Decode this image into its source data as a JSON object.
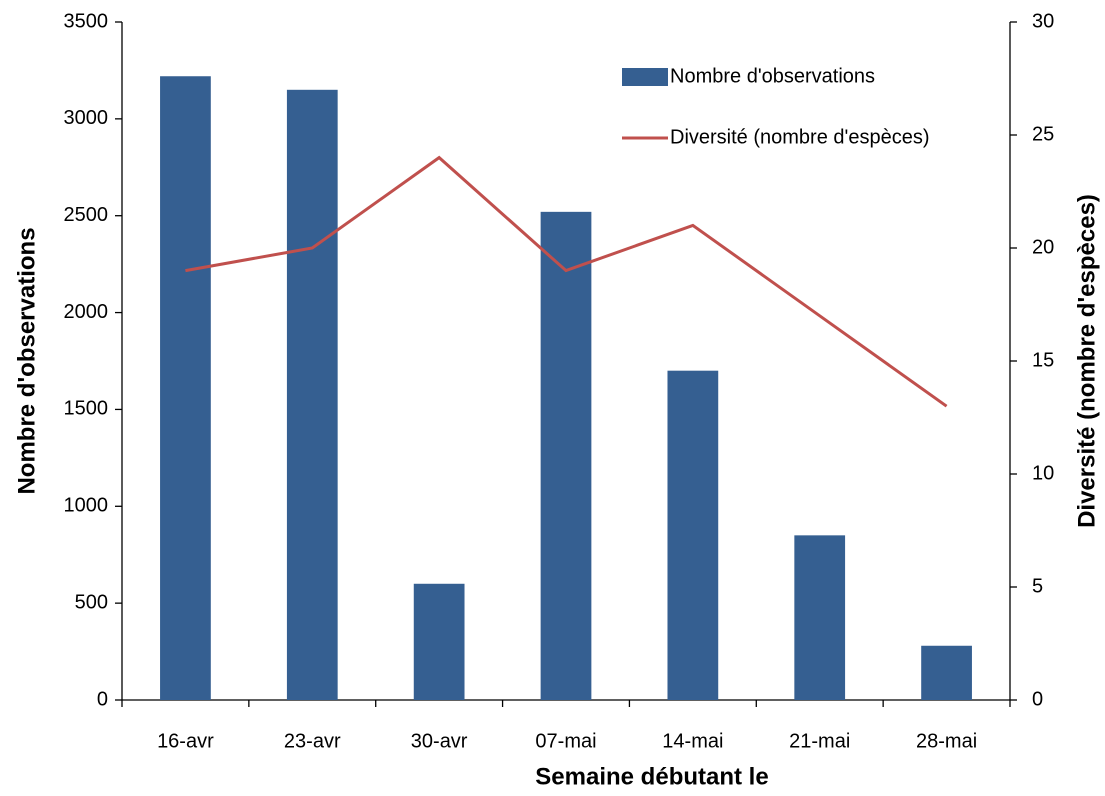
{
  "chart_data": {
    "type": "bar",
    "x_label": "Semaine débutant le",
    "y_label": "Nombre d'observations",
    "y2_label": "Diversité (nombre d'espèces)",
    "categories": [
      "16-avr",
      "23-avr",
      "30-avr",
      "07-mai",
      "14-mai",
      "21-mai",
      "28-mai"
    ],
    "series": [
      {
        "name": "Nombre d'observations",
        "type": "bar",
        "color": "#355f91",
        "values": [
          3220,
          3150,
          600,
          2520,
          1700,
          850,
          280
        ]
      },
      {
        "name": "Diversité (nombre d'espèces)",
        "type": "line",
        "axis": "y2",
        "color": "#c0504d",
        "values": [
          19,
          20,
          24,
          19,
          21,
          17,
          13
        ]
      }
    ],
    "ylim": [
      0,
      3500
    ],
    "yticks": [
      0,
      500,
      1000,
      1500,
      2000,
      2500,
      3000,
      3500
    ],
    "y2lim": [
      0,
      30
    ],
    "y2ticks": [
      0,
      5,
      10,
      15,
      20,
      25,
      30
    ],
    "grid": false,
    "legend": "top-right"
  }
}
